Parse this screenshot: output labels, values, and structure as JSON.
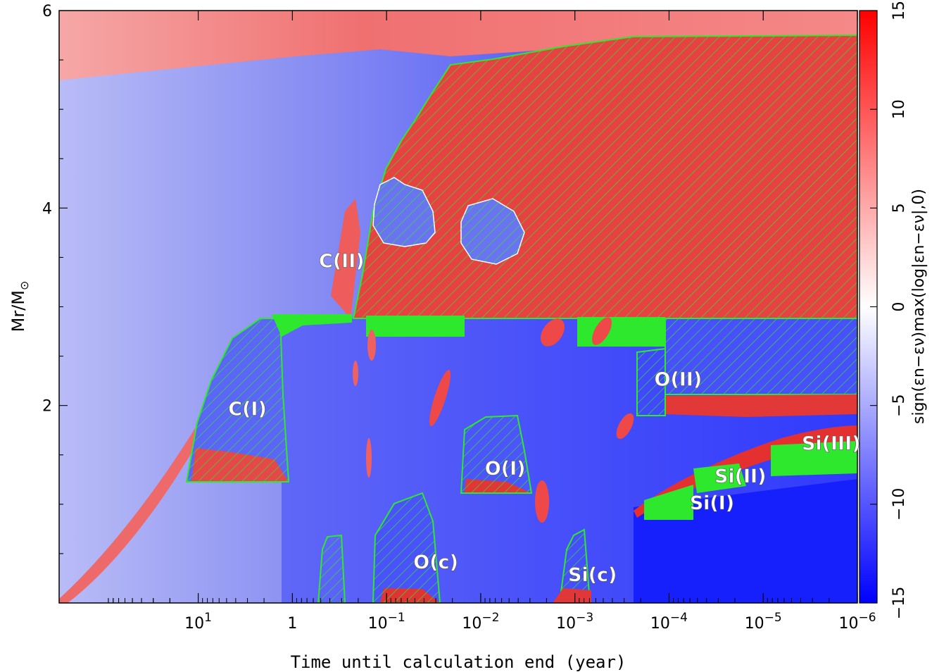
{
  "chart_data": {
    "type": "heatmap",
    "xlabel": "Time until calculation end (year)",
    "ylabel_main": "Mr/M",
    "ylabel_sub": "⊙",
    "x_scale": "log-reversed",
    "xlim": [
      300,
      1e-06
    ],
    "ylim": [
      0,
      6
    ],
    "x_ticks": [
      {
        "value": 10,
        "base": "10",
        "exp": "1"
      },
      {
        "value": 1,
        "base": "1",
        "exp": ""
      },
      {
        "value": 0.1,
        "base": "10",
        "exp": "−1"
      },
      {
        "value": 0.01,
        "base": "10",
        "exp": "−2"
      },
      {
        "value": 0.001,
        "base": "10",
        "exp": "−3"
      },
      {
        "value": 0.0001,
        "base": "10",
        "exp": "−4"
      },
      {
        "value": 1e-05,
        "base": "10",
        "exp": "−5"
      },
      {
        "value": 1e-06,
        "base": "10",
        "exp": "−6"
      }
    ],
    "y_ticks": [
      {
        "value": 2,
        "label": "2"
      },
      {
        "value": 4,
        "label": "4"
      },
      {
        "value": 6,
        "label": "6"
      }
    ],
    "colorbar": {
      "label": "sign(εn−εν)max(log|εn−εν|,0)",
      "range": [
        -15,
        15
      ],
      "ticks": [
        {
          "value": 15,
          "label": "15"
        },
        {
          "value": 10,
          "label": "10"
        },
        {
          "value": 5,
          "label": "5"
        },
        {
          "value": 0,
          "label": "0"
        },
        {
          "value": -5,
          "label": "−5"
        },
        {
          "value": -10,
          "label": "−10"
        },
        {
          "value": -15,
          "label": "−15"
        }
      ],
      "colors": {
        "positive": "#ff0000",
        "zero": "#ffffff",
        "negative": "#0000ff"
      }
    },
    "region_labels": [
      {
        "text": "C(II)",
        "x": 0.3,
        "y": 3.4
      },
      {
        "text": "C(I)",
        "x": 3.0,
        "y": 1.9
      },
      {
        "text": "O(II)",
        "x": 8e-05,
        "y": 2.2
      },
      {
        "text": "O(I)",
        "x": 0.0055,
        "y": 1.3
      },
      {
        "text": "O(c)",
        "x": 0.03,
        "y": 0.35
      },
      {
        "text": "Si(c)",
        "x": 0.00065,
        "y": 0.22
      },
      {
        "text": "Si(I)",
        "x": 3.5e-05,
        "y": 0.95
      },
      {
        "text": "Si(II)",
        "x": 1.75e-05,
        "y": 1.22
      },
      {
        "text": "Si(III)",
        "x": 1.9e-06,
        "y": 1.55
      }
    ],
    "convective_zone_color": "#2ee82e"
  }
}
